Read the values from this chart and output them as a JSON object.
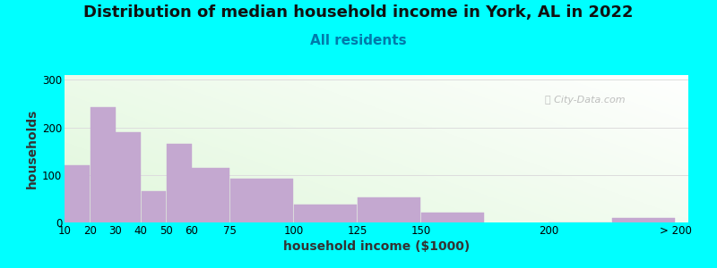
{
  "title": "Distribution of median household income in York, AL in 2022",
  "subtitle": "All residents",
  "xlabel": "household income ($1000)",
  "ylabel": "households",
  "background_color": "#00FFFF",
  "bar_color": "#C4A8D0",
  "bar_edge_color": "#C4A8D0",
  "watermark": "City-Data.com",
  "title_fontsize": 13,
  "subtitle_fontsize": 11,
  "axis_label_fontsize": 10,
  "ylim": [
    0,
    310
  ],
  "yticks": [
    0,
    100,
    200,
    300
  ],
  "xtick_positions": [
    10,
    20,
    30,
    40,
    50,
    60,
    75,
    100,
    125,
    150,
    200,
    250
  ],
  "xtick_labels": [
    "10",
    "20",
    "30",
    "40",
    "50",
    "60",
    "75",
    "100",
    "125",
    "150",
    "200",
    "> 200"
  ],
  "bar_lefts": [
    10,
    20,
    30,
    40,
    50,
    60,
    75,
    100,
    125,
    150,
    200,
    225
  ],
  "bar_widths": [
    10,
    10,
    10,
    10,
    10,
    15,
    25,
    25,
    25,
    25,
    25,
    25
  ],
  "bar_heights": [
    120,
    242,
    190,
    65,
    165,
    115,
    93,
    38,
    52,
    20,
    0,
    10
  ],
  "xlim": [
    10,
    255
  ],
  "title_color": "#111111",
  "subtitle_color": "#007AAA",
  "grid_color": "#dddddd",
  "watermark_color": "#aaaaaa"
}
